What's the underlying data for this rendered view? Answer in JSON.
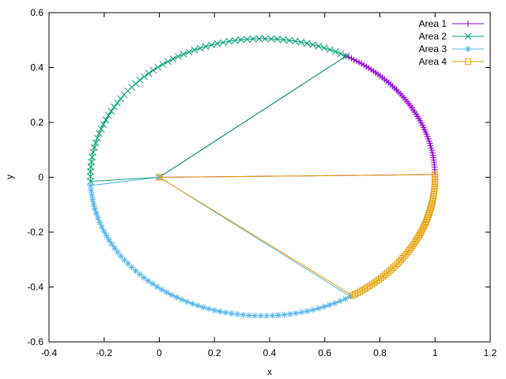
{
  "chart_data": {
    "type": "line",
    "title": "",
    "xlabel": "x",
    "ylabel": "y",
    "xlim": [
      -0.4,
      1.2
    ],
    "ylim": [
      -0.6,
      0.6
    ],
    "xticks": [
      "-0.4",
      "-0.2",
      "0",
      "0.2",
      "0.4",
      "0.6",
      "0.8",
      "1",
      "1.2"
    ],
    "yticks": [
      "0.6",
      "0.4",
      "0.2",
      "0",
      "-0.2",
      "-0.4",
      "-0.6"
    ],
    "grid": false,
    "legend_position": "top-right",
    "ellipse": {
      "center": [
        0.375,
        0.0
      ],
      "semi_axes": [
        0.625,
        0.505
      ]
    },
    "series": [
      {
        "name": "Area 1",
        "color": "#9400d3",
        "marker": "plus",
        "center": [
          0.0,
          0.0
        ],
        "arc_start": [
          1.0,
          0.01
        ],
        "arc_end": [
          0.68,
          0.445
        ]
      },
      {
        "name": "Area 2",
        "color": "#009e73",
        "marker": "x",
        "center": [
          0.0,
          0.0
        ],
        "arc_start": [
          0.68,
          0.445
        ],
        "arc_end": [
          -0.25,
          -0.015
        ]
      },
      {
        "name": "Area 3",
        "color": "#56b4e9",
        "marker": "asterisk",
        "center": [
          0.0,
          0.0
        ],
        "arc_start": [
          -0.25,
          -0.03
        ],
        "arc_end": [
          0.69,
          -0.43
        ]
      },
      {
        "name": "Area 4",
        "color": "#e69f00",
        "marker": "square",
        "center": [
          0.0,
          0.0
        ],
        "arc_start": [
          0.7,
          -0.43
        ],
        "arc_end": [
          1.0,
          0.01
        ]
      }
    ]
  }
}
